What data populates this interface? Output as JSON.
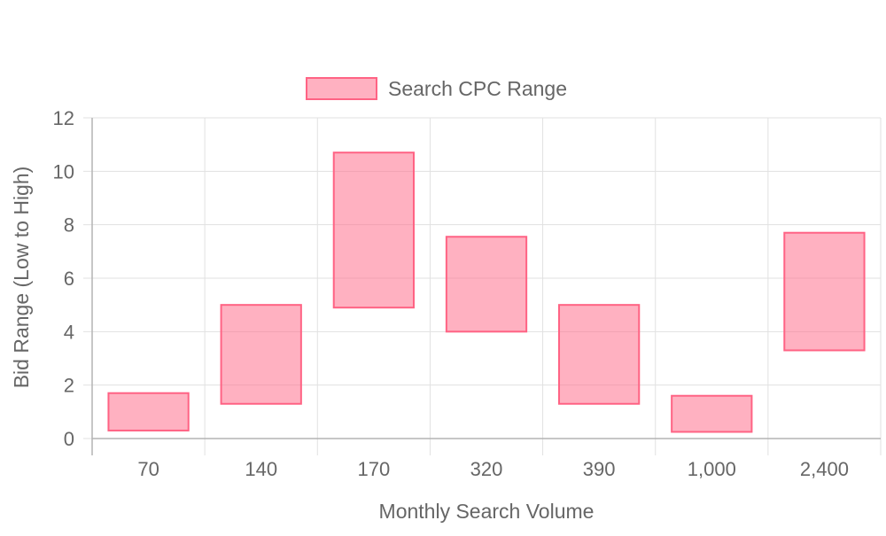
{
  "chart_data": {
    "type": "bar",
    "subtype": "floating-range",
    "categories": [
      "70",
      "140",
      "170",
      "320",
      "390",
      "1,000",
      "2,400"
    ],
    "series": [
      {
        "name": "Search CPC Range",
        "ranges": [
          [
            0.3,
            1.7
          ],
          [
            1.3,
            5.0
          ],
          [
            4.9,
            10.7
          ],
          [
            4.0,
            7.55
          ],
          [
            1.3,
            5.0
          ],
          [
            0.25,
            1.6
          ],
          [
            3.3,
            7.7
          ]
        ]
      }
    ],
    "title": "",
    "xlabel": "Monthly Search Volume",
    "ylabel": "Bid Range (Low to High)",
    "ylim": [
      0,
      12
    ],
    "yticks": [
      0,
      2,
      4,
      6,
      8,
      10,
      12
    ],
    "grid": true,
    "legend_position": "top-center"
  },
  "colors": {
    "bar_fill": "rgba(255, 99, 132, 0.5)",
    "bar_stroke": "#ff6384",
    "grid": "#e1e1e1",
    "axis": "#b3b3b3",
    "text": "#666666"
  }
}
